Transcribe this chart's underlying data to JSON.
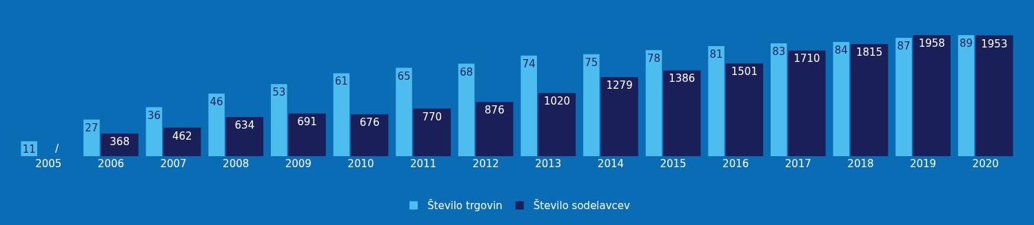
{
  "chart_data": {
    "type": "bar",
    "categories": [
      "2005",
      "2006",
      "2007",
      "2008",
      "2009",
      "2010",
      "2011",
      "2012",
      "2013",
      "2014",
      "2015",
      "2016",
      "2017",
      "2018",
      "2019",
      "2020"
    ],
    "series": [
      {
        "name": "Število trgovin",
        "color": "#4dbdf0",
        "values": [
          11,
          27,
          36,
          46,
          53,
          61,
          65,
          68,
          74,
          75,
          78,
          81,
          83,
          84,
          87,
          89
        ]
      },
      {
        "name": "Število sodelavcev",
        "color": "#1a1f5a",
        "axis": "y2",
        "values": [
          null,
          368,
          462,
          634,
          691,
          676,
          770,
          876,
          1020,
          1279,
          1386,
          1501,
          1710,
          1815,
          1958,
          1953
        ],
        "value_labels": [
          "/",
          "368",
          "462",
          "634",
          "691",
          "676",
          "770",
          "876",
          "1020",
          "1279",
          "1386",
          "1501",
          "1710",
          "1815",
          "1958",
          "1953"
        ]
      }
    ],
    "data_labels": true,
    "legend": "bottom",
    "grid": false
  }
}
